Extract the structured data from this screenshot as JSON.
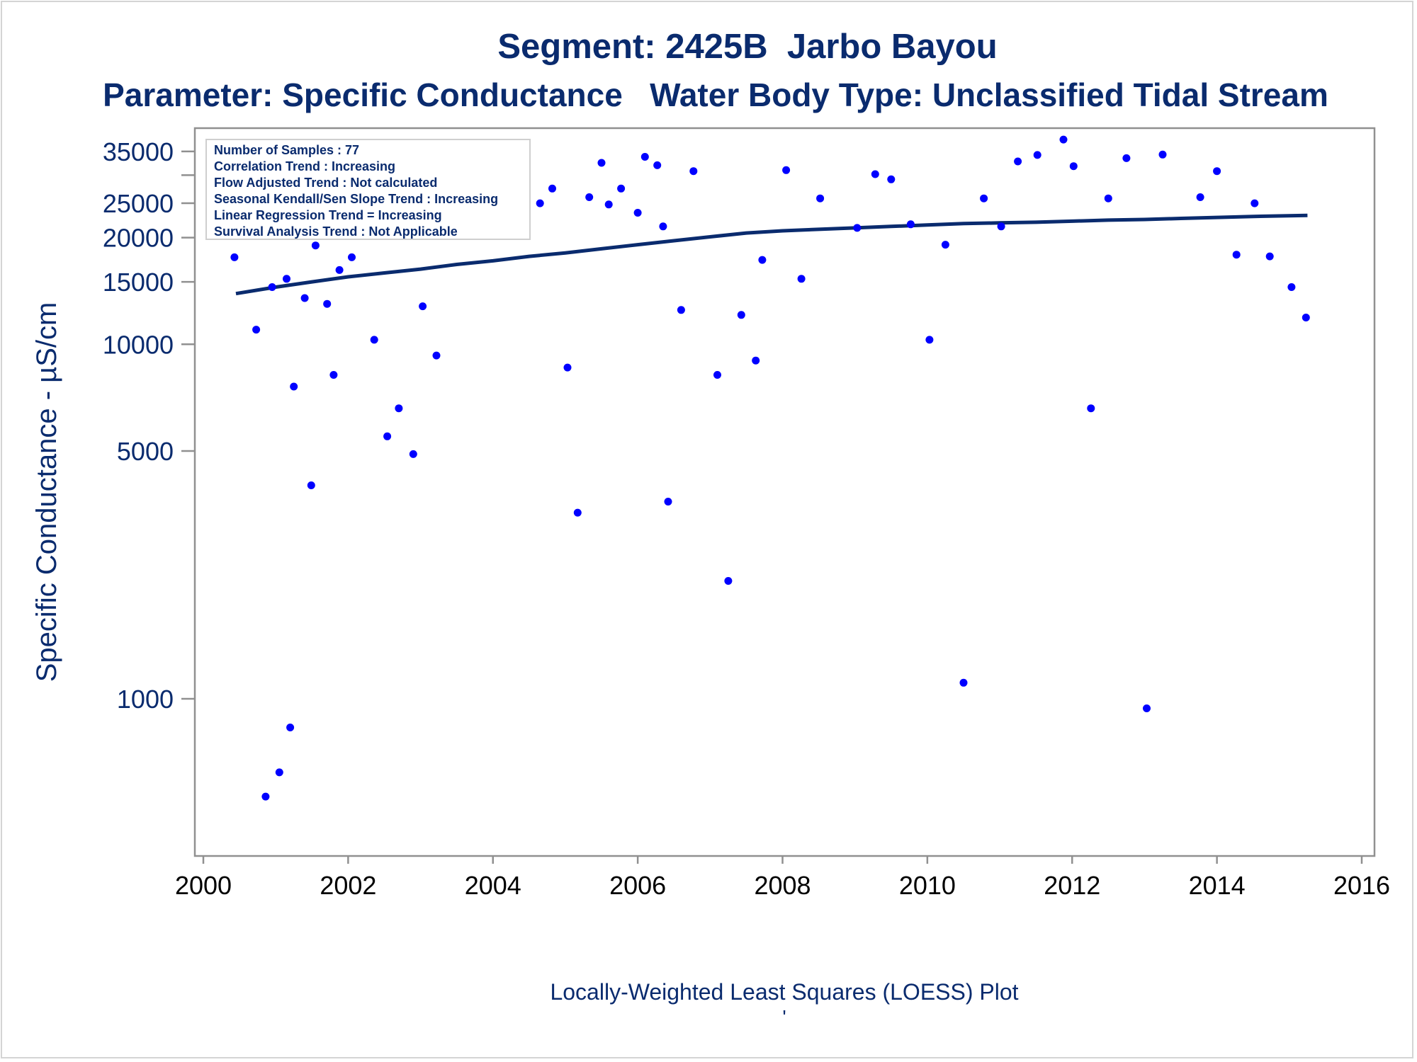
{
  "chart_data": {
    "type": "scatter",
    "title": "Segment: 2425B  Jarbo Bayou",
    "subtitle": "Parameter: Specific Conductance   Water Body Type: Unclassified Tidal Stream",
    "xlabel": "Locally-Weighted Least Squares (LOESS) Plot",
    "footnote": "'",
    "ylabel": "Specific Conductance -  µS/cm",
    "yscale": "log",
    "xlim": [
      2000,
      2016
    ],
    "ylim": [
      500,
      38000
    ],
    "x_ticks": [
      2000,
      2002,
      2004,
      2006,
      2008,
      2010,
      2012,
      2014,
      2016
    ],
    "y_ticks": [
      1000,
      5000,
      10000,
      15000,
      20000,
      25000,
      35000
    ],
    "y_minor_ticks": [
      30000
    ],
    "grid": false,
    "legend": {
      "placement": "top-left",
      "lines": [
        "Number of Samples : 77",
        "Correlation Trend : Increasing",
        "Flow Adjusted Trend : Not calculated",
        "Seasonal Kendall/Sen Slope Trend : Increasing",
        "Linear Regression Trend = Increasing",
        "Survival Analysis Trend : Not Applicable"
      ]
    },
    "series": [
      {
        "kind": "points",
        "color": "#0000ff",
        "points": [
          [
            2000.43,
            17600
          ],
          [
            2000.58,
            29000
          ],
          [
            2000.66,
            33500
          ],
          [
            2000.73,
            11000
          ],
          [
            2000.8,
            27000
          ],
          [
            2000.86,
            530
          ],
          [
            2000.95,
            14500
          ],
          [
            2001.05,
            620
          ],
          [
            2001.15,
            15300
          ],
          [
            2001.2,
            830
          ],
          [
            2001.25,
            7600
          ],
          [
            2001.4,
            13500
          ],
          [
            2001.49,
            4000
          ],
          [
            2001.55,
            19000
          ],
          [
            2001.64,
            27500
          ],
          [
            2001.71,
            13000
          ],
          [
            2001.8,
            8200
          ],
          [
            2001.88,
            16200
          ],
          [
            2002.05,
            17600
          ],
          [
            2002.2,
            21600
          ],
          [
            2002.36,
            10300
          ],
          [
            2002.54,
            5500
          ],
          [
            2002.7,
            6600
          ],
          [
            2002.9,
            4900
          ],
          [
            2003.03,
            12800
          ],
          [
            2003.22,
            9300
          ],
          [
            2003.35,
            23500
          ],
          [
            2003.58,
            21000
          ],
          [
            2003.62,
            29000
          ],
          [
            2004.65,
            25000
          ],
          [
            2004.82,
            27500
          ],
          [
            2005.03,
            8600
          ],
          [
            2005.17,
            3350
          ],
          [
            2005.33,
            26000
          ],
          [
            2005.5,
            32500
          ],
          [
            2005.6,
            24800
          ],
          [
            2005.77,
            27500
          ],
          [
            2006.0,
            23500
          ],
          [
            2006.1,
            33800
          ],
          [
            2006.27,
            32000
          ],
          [
            2006.35,
            21500
          ],
          [
            2006.42,
            3600
          ],
          [
            2006.6,
            12500
          ],
          [
            2006.77,
            30800
          ],
          [
            2007.1,
            8200
          ],
          [
            2007.25,
            2150
          ],
          [
            2007.43,
            12100
          ],
          [
            2007.63,
            9000
          ],
          [
            2007.72,
            17300
          ],
          [
            2008.05,
            31000
          ],
          [
            2008.26,
            15300
          ],
          [
            2008.52,
            25800
          ],
          [
            2009.03,
            21300
          ],
          [
            2009.28,
            30200
          ],
          [
            2009.5,
            29200
          ],
          [
            2009.77,
            21800
          ],
          [
            2010.03,
            10300
          ],
          [
            2010.25,
            19100
          ],
          [
            2010.5,
            1110
          ],
          [
            2010.78,
            25800
          ],
          [
            2011.02,
            21500
          ],
          [
            2011.25,
            32800
          ],
          [
            2011.52,
            34200
          ],
          [
            2011.88,
            37800
          ],
          [
            2012.02,
            31800
          ],
          [
            2012.26,
            6600
          ],
          [
            2012.5,
            25800
          ],
          [
            2012.75,
            33500
          ],
          [
            2013.03,
            940
          ],
          [
            2013.25,
            34300
          ],
          [
            2013.77,
            26000
          ],
          [
            2014.0,
            30800
          ],
          [
            2014.27,
            17900
          ],
          [
            2014.52,
            25000
          ],
          [
            2014.73,
            17700
          ],
          [
            2015.03,
            14500
          ],
          [
            2015.23,
            11900
          ]
        ]
      },
      {
        "kind": "loess",
        "color": "#0a2b6e",
        "points": [
          [
            2000.45,
            13900
          ],
          [
            2001.0,
            14500
          ],
          [
            2001.5,
            15000
          ],
          [
            2002.0,
            15500
          ],
          [
            2002.5,
            15900
          ],
          [
            2003.0,
            16300
          ],
          [
            2003.5,
            16800
          ],
          [
            2004.0,
            17200
          ],
          [
            2004.5,
            17700
          ],
          [
            2005.0,
            18100
          ],
          [
            2005.5,
            18600
          ],
          [
            2006.0,
            19100
          ],
          [
            2006.5,
            19600
          ],
          [
            2007.0,
            20100
          ],
          [
            2007.5,
            20600
          ],
          [
            2008.0,
            20900
          ],
          [
            2008.5,
            21100
          ],
          [
            2009.0,
            21300
          ],
          [
            2009.5,
            21500
          ],
          [
            2010.0,
            21700
          ],
          [
            2010.5,
            21900
          ],
          [
            2011.0,
            22000
          ],
          [
            2011.5,
            22100
          ],
          [
            2012.0,
            22250
          ],
          [
            2012.5,
            22400
          ],
          [
            2013.0,
            22500
          ],
          [
            2013.5,
            22650
          ],
          [
            2014.0,
            22800
          ],
          [
            2014.5,
            22950
          ],
          [
            2015.25,
            23100
          ]
        ]
      }
    ]
  }
}
